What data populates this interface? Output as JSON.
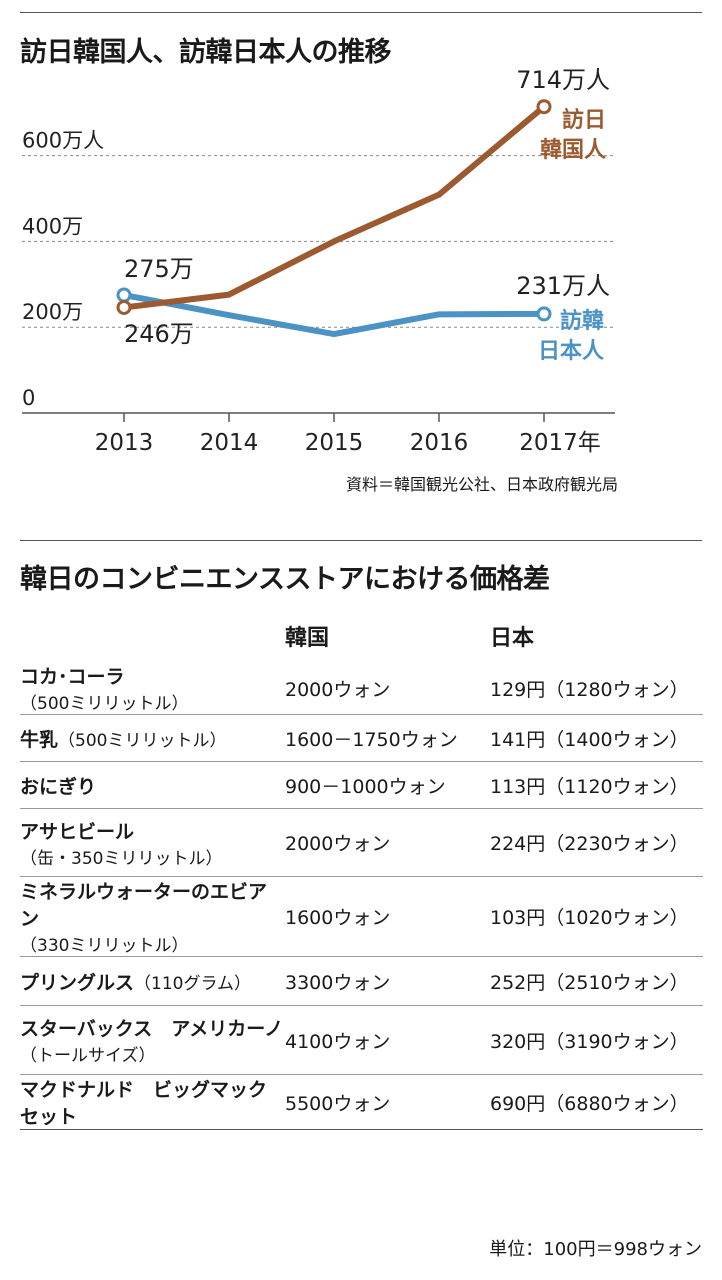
{
  "chart_title": "訪日韓国人、訪韓日本人の推移",
  "source": "資料＝韓国観光公社、日本政府観光局",
  "chart_data": {
    "type": "line",
    "title": "訪日韓国人、訪韓日本人の推移",
    "x": [
      2013,
      2014,
      2015,
      2016,
      2017
    ],
    "x_tick_labels": [
      "2013",
      "2014",
      "2015",
      "2016",
      "2017年"
    ],
    "y_tick_values": [
      0,
      200,
      400,
      600
    ],
    "y_tick_labels": [
      "0",
      "200万",
      "400万",
      "600万人"
    ],
    "ylim": [
      0,
      750
    ],
    "series": [
      {
        "name": "訪日韓国人",
        "label_line1": "訪日",
        "label_line2": "韓国人",
        "color": "#9b5a2f",
        "values": [
          246,
          276,
          400,
          509,
          714
        ],
        "start_label": "246万",
        "end_label": "714万人"
      },
      {
        "name": "訪韓日本人",
        "label_line1": "訪韓",
        "label_line2": "日本人",
        "color": "#4b92c5",
        "values": [
          275,
          228,
          184,
          230,
          231
        ],
        "start_label": "275万",
        "end_label": "231万人"
      }
    ]
  },
  "table": {
    "title": "韓日のコンビニエンスストアにおける価格差",
    "headers": [
      "",
      "韓国",
      "日本"
    ],
    "rows": [
      {
        "name": "コカ･コーラ",
        "note": "（500ミリリットル）",
        "korea": "2000ウォン",
        "japan": "129円（1280ウォン）"
      },
      {
        "name": "牛乳",
        "note": "（500ミリリットル）",
        "korea": "1600－1750ウォン",
        "japan": "141円（1400ウォン）"
      },
      {
        "name": "おにぎり",
        "note": "",
        "korea": "900－1000ウォン",
        "japan": "113円（1120ウォン）"
      },
      {
        "name": "アサヒビール",
        "note": "（缶・350ミリリットル）",
        "korea": "2000ウォン",
        "japan": "224円（2230ウォン）"
      },
      {
        "name": "ミネラルウォーターのエビアン",
        "note": "（330ミリリットル）",
        "korea": "1600ウォン",
        "japan": "103円（1020ウォン）"
      },
      {
        "name": "プリングルス",
        "note": "（110グラム）",
        "korea": "3300ウォン",
        "japan": "252円（2510ウォン）"
      },
      {
        "name": "スターバックス　アメリカーノ",
        "note": "（トールサイズ）",
        "korea": "4100ウォン",
        "japan": "320円（3190ウォン）"
      },
      {
        "name": "マクドナルド　ビッグマックセット",
        "note": "",
        "korea": "5500ウォン",
        "japan": "690円（6880ウォン）"
      }
    ]
  },
  "unit_note": "単位：100円＝998ウォン"
}
